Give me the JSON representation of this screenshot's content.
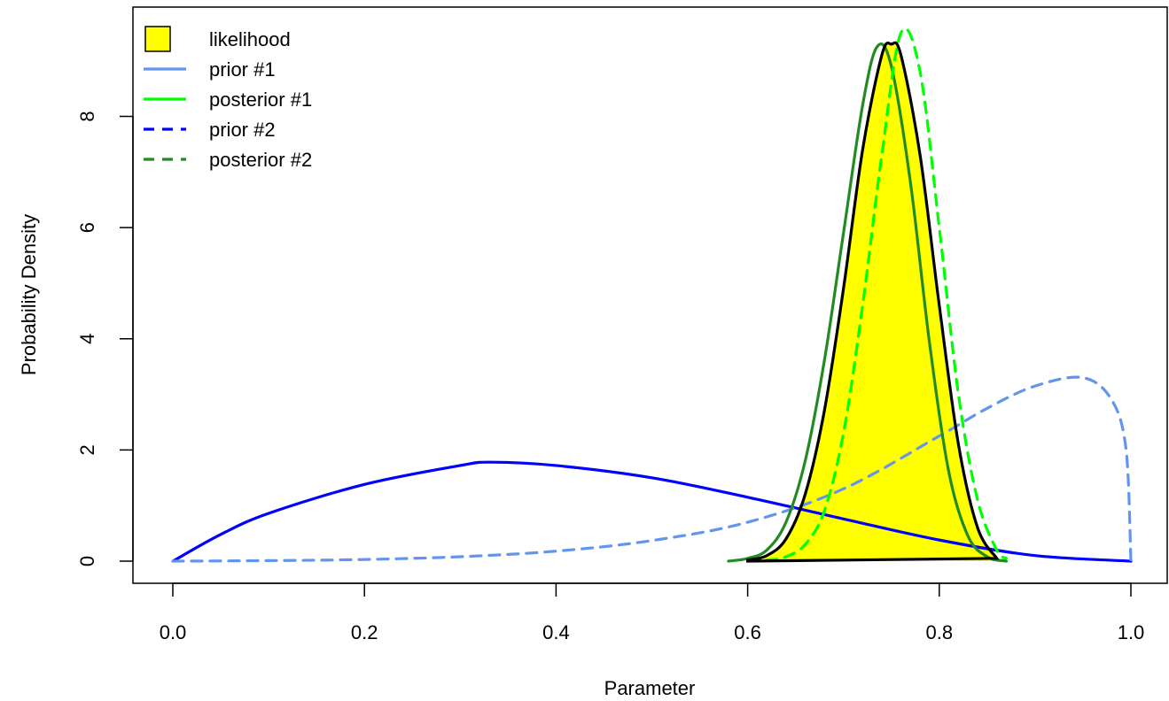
{
  "chart_data": {
    "type": "line",
    "title": "",
    "xlabel": "Parameter",
    "ylabel": "Probability Density",
    "xlim": [
      0,
      1
    ],
    "ylim": [
      0,
      9.5
    ],
    "x_ticks": [
      "0.0",
      "0.2",
      "0.4",
      "0.6",
      "0.8",
      "1.0"
    ],
    "y_ticks": [
      "0",
      "2",
      "4",
      "6",
      "8"
    ],
    "grid": false,
    "legend_position": "top-left",
    "colors": {
      "likelihood_fill": "#ffff00",
      "likelihood_line": "#000000",
      "prior1": "#6495ed",
      "posterior1": "#00ff00",
      "prior2": "#0000ff",
      "posterior2": "#228b22"
    },
    "series": [
      {
        "name": "likelihood",
        "style": "filled",
        "x": [
          0.6,
          0.62,
          0.64,
          0.66,
          0.68,
          0.7,
          0.72,
          0.74,
          0.75,
          0.76,
          0.78,
          0.8,
          0.82,
          0.84,
          0.86
        ],
        "y": [
          0.02,
          0.1,
          0.4,
          1.2,
          2.7,
          4.9,
          7.4,
          9.1,
          9.3,
          9.1,
          7.3,
          4.6,
          2.1,
          0.6,
          0.05
        ]
      },
      {
        "name": "prior #1",
        "style": "solid",
        "x": [
          0.0,
          0.1,
          0.2,
          0.3,
          0.4,
          0.5,
          0.6,
          0.7,
          0.8,
          0.85,
          0.9,
          0.95,
          0.98,
          0.995,
          1.0
        ],
        "y": [
          0.0,
          0.01,
          0.03,
          0.08,
          0.18,
          0.37,
          0.7,
          1.3,
          2.25,
          2.75,
          3.15,
          3.3,
          2.9,
          2.0,
          0.0
        ]
      },
      {
        "name": "posterior #1",
        "style": "solid",
        "x": [
          0.6,
          0.62,
          0.64,
          0.66,
          0.68,
          0.7,
          0.72,
          0.74,
          0.76,
          0.78,
          0.8,
          0.82,
          0.84,
          0.86,
          0.87
        ],
        "y": [
          0.0,
          0.02,
          0.08,
          0.3,
          0.9,
          2.3,
          4.6,
          7.3,
          9.5,
          8.8,
          6.0,
          3.0,
          1.1,
          0.2,
          0.05
        ]
      },
      {
        "name": "prior #2",
        "style": "dashed",
        "x": [
          0.0,
          0.05,
          0.1,
          0.2,
          0.3,
          0.333,
          0.4,
          0.5,
          0.6,
          0.7,
          0.8,
          0.9,
          1.0
        ],
        "y": [
          0.0,
          0.48,
          0.86,
          1.38,
          1.72,
          1.78,
          1.72,
          1.5,
          1.15,
          0.76,
          0.38,
          0.1,
          0.0
        ]
      },
      {
        "name": "posterior #2",
        "style": "dashed",
        "x": [
          0.58,
          0.6,
          0.62,
          0.64,
          0.66,
          0.68,
          0.7,
          0.72,
          0.735,
          0.75,
          0.77,
          0.79,
          0.81,
          0.83,
          0.85,
          0.87
        ],
        "y": [
          0.0,
          0.05,
          0.2,
          0.7,
          1.8,
          3.6,
          5.9,
          8.2,
          9.25,
          8.9,
          6.8,
          3.9,
          1.6,
          0.45,
          0.08,
          0.0
        ]
      }
    ]
  }
}
